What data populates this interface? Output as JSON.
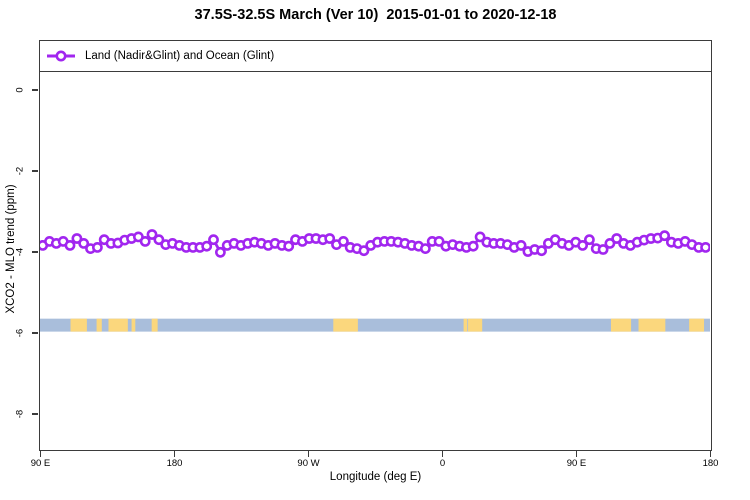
{
  "title": "37.5S-32.5S March (Ver 10)  2015-01-01 to 2020-12-18",
  "legend": {
    "items": [
      {
        "label": "Land (Nadir&Glint) and Ocean (Glint)",
        "color": "#a126ef",
        "marker": "open-circle"
      }
    ]
  },
  "axes": {
    "x": {
      "label": "Longitude (deg E)",
      "tick_labels": [
        "90 E",
        "180",
        "90 W",
        "0",
        "90 E",
        "180"
      ]
    },
    "y": {
      "label": "XCO2 - MLO trend (ppm)",
      "tick_labels": [
        "0",
        "-2",
        "-4",
        "-6",
        "-8"
      ]
    }
  },
  "colors": {
    "series_purple": "#a126ef",
    "frame_gray": "#3b3b3b",
    "ocean_blue": "#a9bedb",
    "land_yellow": "#fbd77d"
  },
  "chart_data": {
    "type": "line",
    "title": "37.5S-32.5S March (Ver 10)  2015-01-01 to 2020-12-18",
    "xlabel": "Longitude (deg E)",
    "ylabel": "XCO2 - MLO trend (ppm)",
    "grid": false,
    "legend_position": "top-strip",
    "x_axis": {
      "start_deg": 90,
      "end_deg": 540,
      "ticks_deg": [
        90,
        180,
        270,
        360,
        450,
        540
      ],
      "tick_labels": [
        "90 E",
        "180",
        "90 W",
        "0",
        "90 E",
        "180"
      ]
    },
    "y_axis": {
      "min": -8.88,
      "max": 1.2,
      "ticks": [
        0,
        -2,
        -4,
        -6,
        -8
      ],
      "tick_labels": [
        "0",
        "-2",
        "-4",
        "-6",
        "-8"
      ]
    },
    "series": [
      {
        "name": "Land (Nadir&Glint) and Ocean (Glint)",
        "color": "#a126ef",
        "marker": "open-circle",
        "x_start_deg": 91.8,
        "x_step_deg": 4.59,
        "values": [
          -3.85,
          -3.75,
          -3.8,
          -3.75,
          -3.85,
          -3.68,
          -3.8,
          -3.93,
          -3.9,
          -3.71,
          -3.8,
          -3.79,
          -3.72,
          -3.68,
          -3.64,
          -3.75,
          -3.58,
          -3.71,
          -3.83,
          -3.8,
          -3.85,
          -3.9,
          -3.9,
          -3.9,
          -3.87,
          -3.71,
          -4.02,
          -3.85,
          -3.8,
          -3.85,
          -3.8,
          -3.77,
          -3.8,
          -3.85,
          -3.8,
          -3.85,
          -3.87,
          -3.71,
          -3.75,
          -3.68,
          -3.68,
          -3.71,
          -3.68,
          -3.83,
          -3.75,
          -3.9,
          -3.93,
          -3.98,
          -3.85,
          -3.77,
          -3.75,
          -3.75,
          -3.77,
          -3.8,
          -3.85,
          -3.87,
          -3.93,
          -3.75,
          -3.75,
          -3.87,
          -3.83,
          -3.87,
          -3.9,
          -3.87,
          -3.64,
          -3.77,
          -3.8,
          -3.8,
          -3.83,
          -3.9,
          -3.85,
          -4.0,
          -3.95,
          -3.98,
          -3.8,
          -3.71,
          -3.8,
          -3.85,
          -3.77,
          -3.85,
          -3.71,
          -3.93,
          -3.95,
          -3.8,
          -3.68,
          -3.8,
          -3.85,
          -3.77,
          -3.72,
          -3.68,
          -3.67,
          -3.61,
          -3.77,
          -3.8,
          -3.75,
          -3.83,
          -3.9,
          -3.9
        ]
      }
    ],
    "map_strip": {
      "description": "world coastline band at latitude 37.5S-32.5S",
      "ocean_color": "#a9bedb",
      "land_color": "#fbd77d",
      "y_top_ppm": -5.66,
      "y_bottom_ppm": -5.98,
      "land_patches_deg": [
        [
          110.5,
          121.5
        ],
        [
          128,
          131.5
        ],
        [
          136,
          149
        ],
        [
          151.5,
          154
        ],
        [
          165,
          169
        ],
        [
          287,
          303.5
        ],
        [
          374.5,
          377
        ],
        [
          377.5,
          387
        ],
        [
          473.5,
          487
        ],
        [
          492,
          510
        ],
        [
          526,
          536
        ]
      ]
    }
  }
}
